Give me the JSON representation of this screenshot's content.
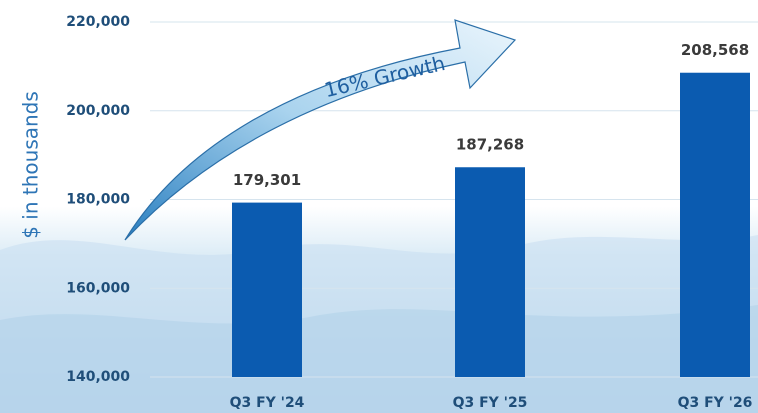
{
  "chart_data": {
    "type": "bar",
    "y_axis_label": "$ in thousands",
    "annotation": "16% Growth",
    "categories": [
      "Q3 FY '24",
      "Q3 FY '25",
      "Q3 FY '26"
    ],
    "values": [
      179301,
      187268,
      208568
    ],
    "value_labels": [
      "179,301",
      "187,268",
      "208,568"
    ],
    "color": "#0b5bb0",
    "ylim": [
      140000,
      220000
    ],
    "yticks": [
      {
        "value": 140000,
        "label": "140,000"
      },
      {
        "value": 160000,
        "label": "160,000"
      },
      {
        "value": 180000,
        "label": "180,000"
      },
      {
        "value": 200000,
        "label": "200,000"
      },
      {
        "value": 220000,
        "label": "220,000"
      }
    ],
    "grid": true
  }
}
